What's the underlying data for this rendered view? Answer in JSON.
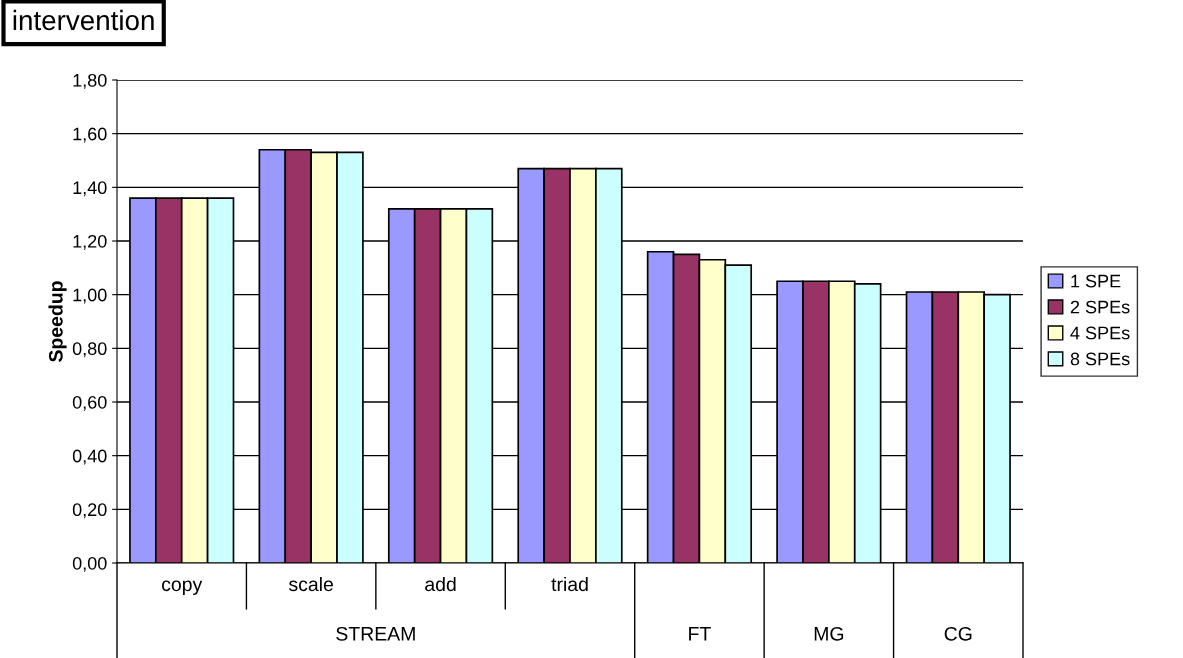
{
  "chart_data": {
    "type": "bar",
    "ylabel": "Speedup",
    "categories": [
      "copy",
      "scale",
      "add",
      "triad",
      "FT",
      "MG",
      "CG"
    ],
    "series": [
      {
        "name": "1 SPE",
        "color": "#9999ff",
        "values": [
          1.36,
          1.54,
          1.32,
          1.47,
          1.16,
          1.05,
          1.01
        ]
      },
      {
        "name": "2 SPEs",
        "color": "#993366",
        "values": [
          1.36,
          1.54,
          1.32,
          1.47,
          1.15,
          1.05,
          1.01
        ]
      },
      {
        "name": "4 SPEs",
        "color": "#ffffcc",
        "values": [
          1.36,
          1.53,
          1.32,
          1.47,
          1.13,
          1.05,
          1.01
        ]
      },
      {
        "name": "8 SPEs",
        "color": "#ccffff",
        "values": [
          1.36,
          1.53,
          1.32,
          1.47,
          1.11,
          1.04,
          1.0
        ]
      }
    ],
    "ylim": [
      0,
      1.8
    ],
    "yticks": [
      {
        "value": 0,
        "label": "0,00"
      },
      {
        "value": 0.2,
        "label": "0,20"
      },
      {
        "value": 0.4,
        "label": "0,40"
      },
      {
        "value": 0.6,
        "label": "0,60"
      },
      {
        "value": 0.8,
        "label": "0,80"
      },
      {
        "value": 1.0,
        "label": "1,00"
      },
      {
        "value": 1.2,
        "label": "1,20"
      },
      {
        "value": 1.4,
        "label": "1,40"
      },
      {
        "value": 1.6,
        "label": "1,60"
      },
      {
        "value": 1.8,
        "label": "1,80"
      }
    ],
    "grid": "y",
    "legend": "right",
    "annotations": [
      "intervention",
      "STREAM"
    ]
  }
}
